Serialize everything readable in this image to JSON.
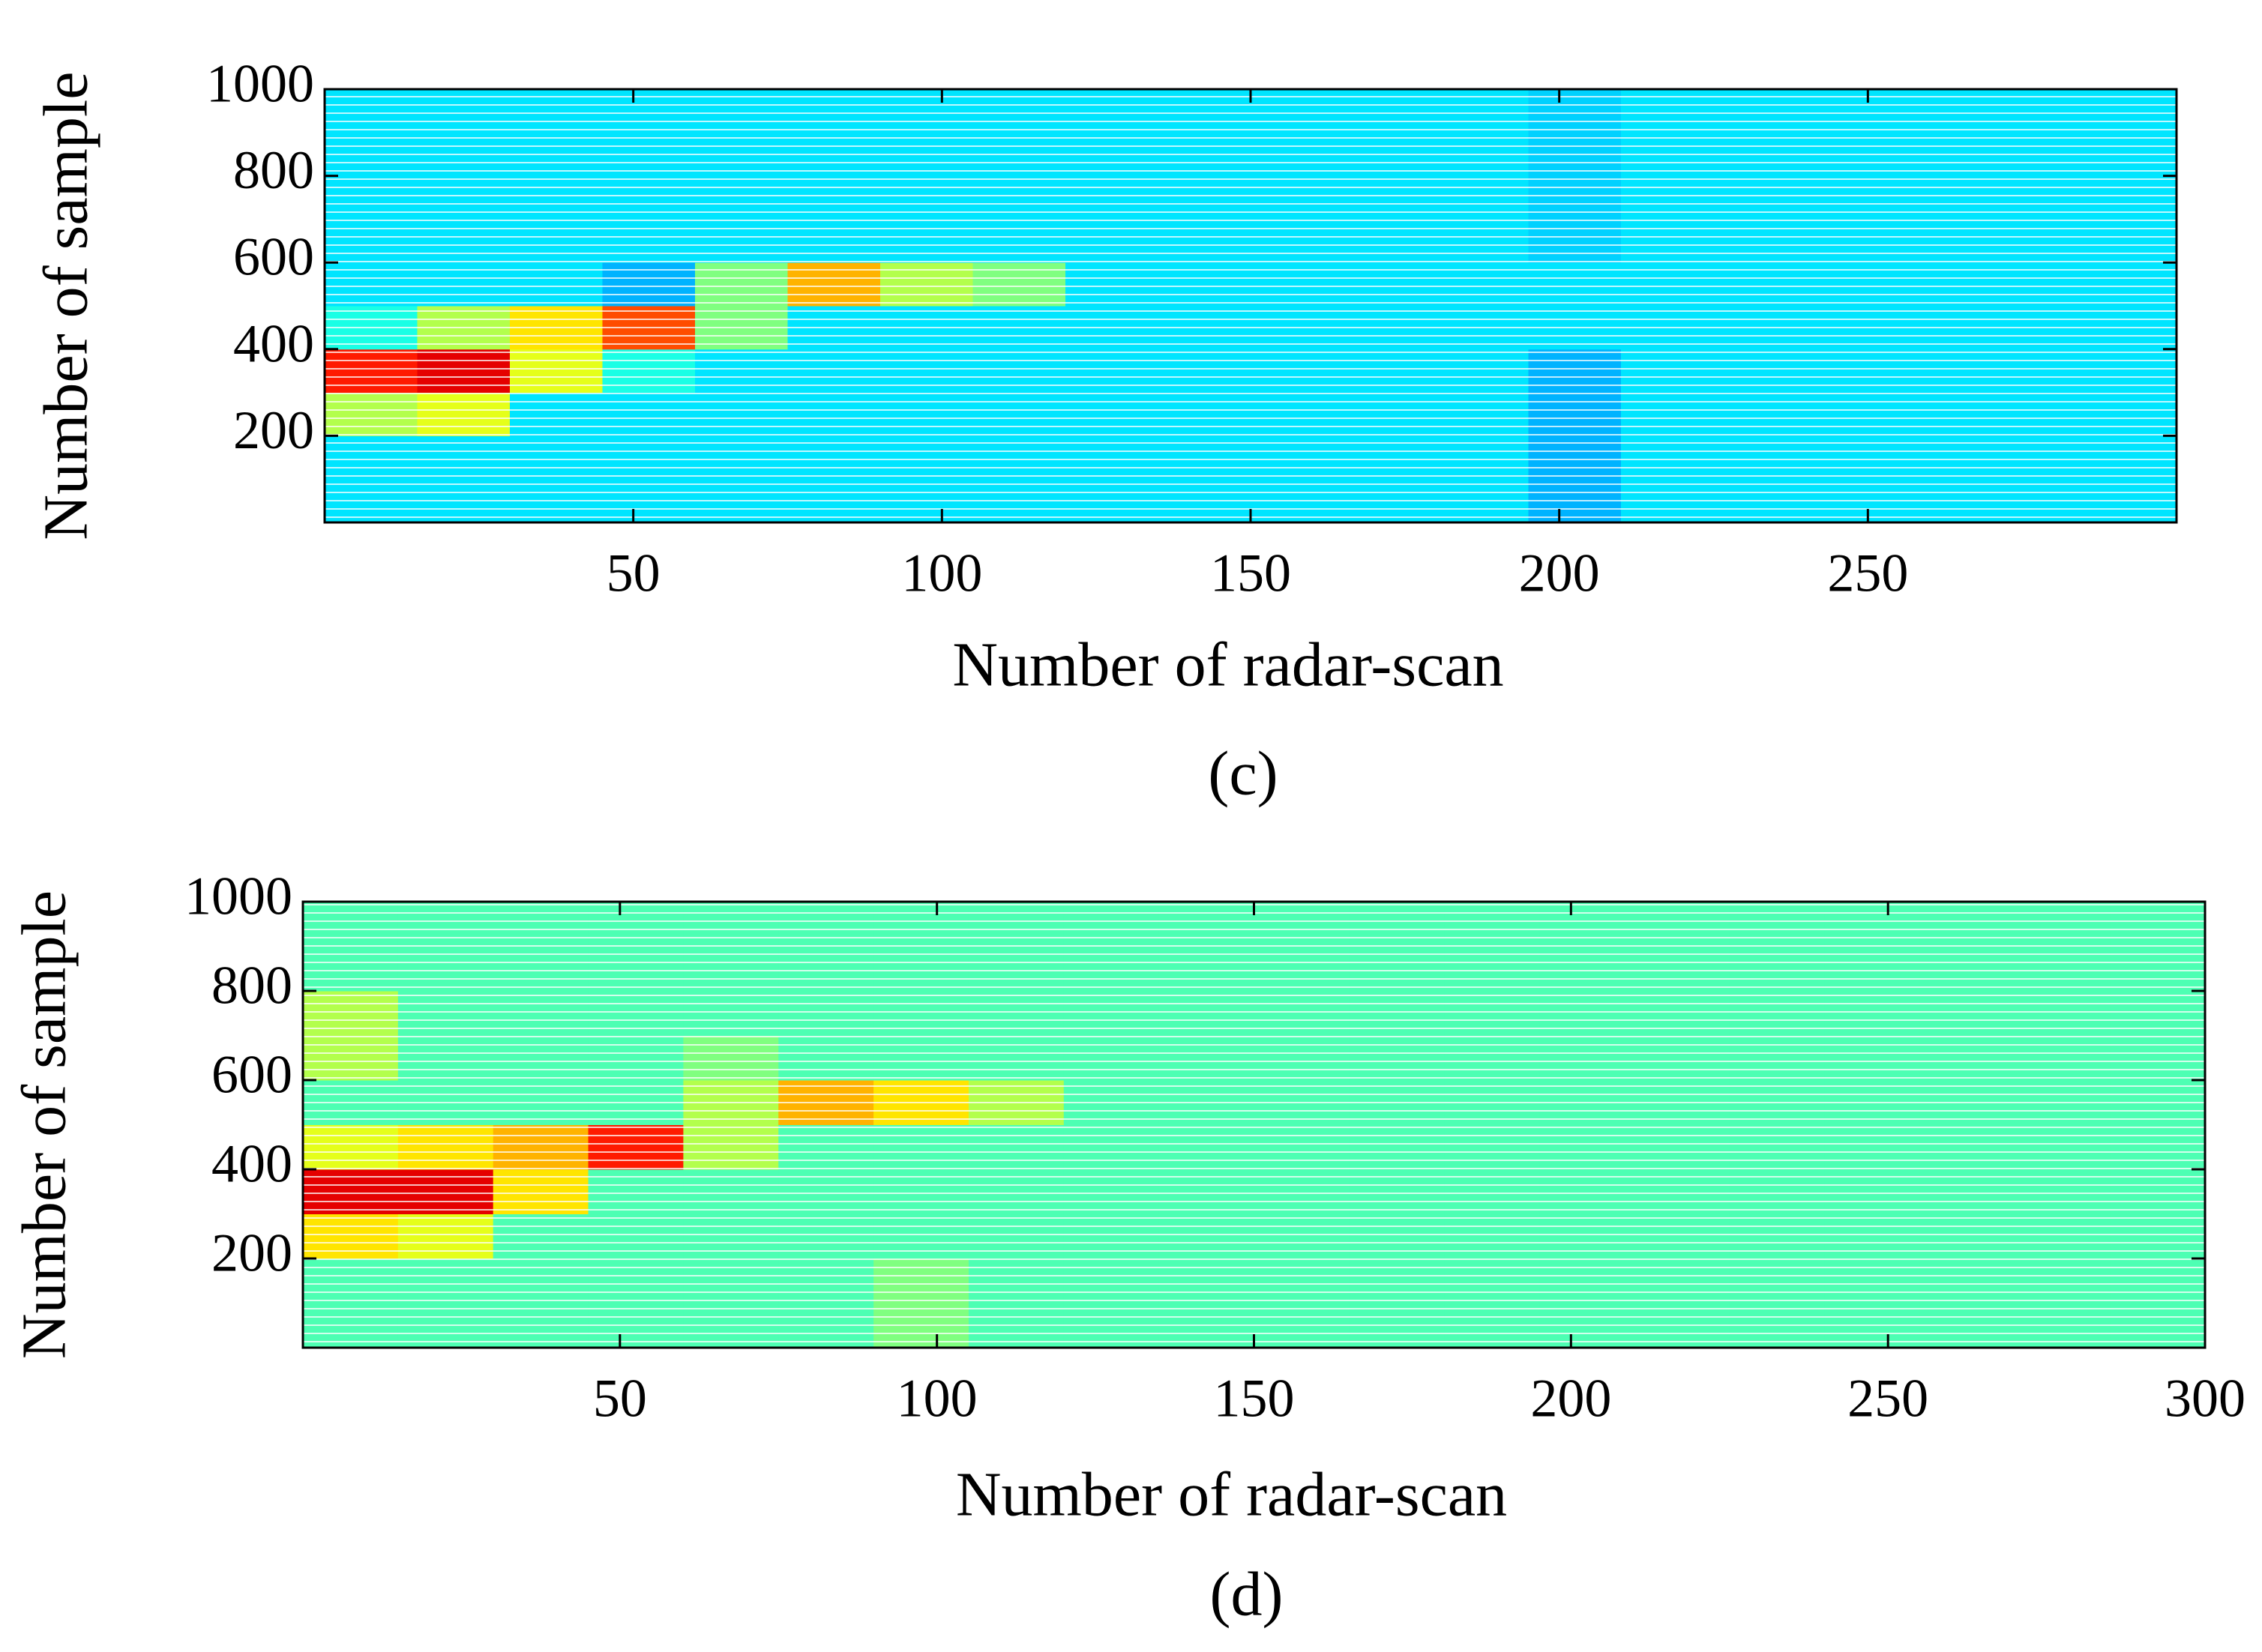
{
  "chart_data": [
    {
      "type": "heatmap",
      "label": "(c)",
      "xlabel": "Number of radar-scan",
      "ylabel": "Number of sample",
      "xlim": [
        0,
        300
      ],
      "ylim": [
        0,
        1000
      ],
      "xticks": [
        50,
        100,
        150,
        200,
        250
      ],
      "yticks": [
        200,
        400,
        600,
        800,
        1000
      ],
      "colormap": "jet",
      "zlim": [
        0,
        1
      ],
      "x_edges": [
        0,
        15,
        30,
        45,
        60,
        75,
        90,
        105,
        120,
        135,
        150,
        165,
        180,
        195,
        210,
        225,
        240,
        255,
        270,
        285,
        300
      ],
      "y_edges": [
        0,
        100,
        200,
        300,
        400,
        500,
        600,
        700,
        800,
        900,
        1000
      ],
      "z": [
        [
          0.35,
          0.35,
          0.35,
          0.35,
          0.35,
          0.35,
          0.35,
          0.35,
          0.35,
          0.35,
          0.35,
          0.35,
          0.35,
          0.3,
          0.35,
          0.35,
          0.35,
          0.35,
          0.35,
          0.35
        ],
        [
          0.35,
          0.35,
          0.35,
          0.35,
          0.35,
          0.35,
          0.35,
          0.35,
          0.35,
          0.35,
          0.35,
          0.35,
          0.35,
          0.3,
          0.35,
          0.35,
          0.35,
          0.35,
          0.35,
          0.35
        ],
        [
          0.55,
          0.6,
          0.35,
          0.35,
          0.35,
          0.35,
          0.35,
          0.35,
          0.35,
          0.35,
          0.35,
          0.35,
          0.35,
          0.3,
          0.35,
          0.35,
          0.35,
          0.35,
          0.35,
          0.35
        ],
        [
          0.85,
          0.9,
          0.6,
          0.4,
          0.35,
          0.35,
          0.35,
          0.35,
          0.35,
          0.35,
          0.35,
          0.35,
          0.35,
          0.3,
          0.35,
          0.35,
          0.35,
          0.35,
          0.35,
          0.35
        ],
        [
          0.4,
          0.55,
          0.65,
          0.8,
          0.5,
          0.35,
          0.35,
          0.35,
          0.35,
          0.35,
          0.35,
          0.35,
          0.35,
          0.35,
          0.35,
          0.35,
          0.35,
          0.35,
          0.35,
          0.35
        ],
        [
          0.35,
          0.35,
          0.35,
          0.3,
          0.5,
          0.7,
          0.55,
          0.5,
          0.35,
          0.35,
          0.35,
          0.35,
          0.35,
          0.35,
          0.35,
          0.35,
          0.35,
          0.35,
          0.35,
          0.35
        ],
        [
          0.35,
          0.35,
          0.35,
          0.35,
          0.35,
          0.35,
          0.35,
          0.35,
          0.35,
          0.35,
          0.35,
          0.35,
          0.35,
          0.33,
          0.35,
          0.35,
          0.35,
          0.35,
          0.35,
          0.35
        ],
        [
          0.35,
          0.35,
          0.35,
          0.35,
          0.35,
          0.35,
          0.35,
          0.35,
          0.35,
          0.35,
          0.35,
          0.35,
          0.35,
          0.33,
          0.35,
          0.35,
          0.35,
          0.35,
          0.35,
          0.35
        ],
        [
          0.35,
          0.35,
          0.35,
          0.35,
          0.35,
          0.35,
          0.35,
          0.35,
          0.35,
          0.35,
          0.35,
          0.35,
          0.35,
          0.33,
          0.35,
          0.35,
          0.35,
          0.35,
          0.35,
          0.35
        ],
        [
          0.35,
          0.35,
          0.35,
          0.35,
          0.35,
          0.35,
          0.35,
          0.35,
          0.35,
          0.35,
          0.35,
          0.35,
          0.35,
          0.33,
          0.35,
          0.35,
          0.35,
          0.35,
          0.35,
          0.35
        ]
      ]
    },
    {
      "type": "heatmap",
      "label": "(d)",
      "xlabel": "Number of radar-scan",
      "ylabel": "Number of sample",
      "xlim": [
        0,
        300
      ],
      "ylim": [
        0,
        1000
      ],
      "xticks": [
        50,
        100,
        150,
        200,
        250,
        300
      ],
      "yticks": [
        200,
        400,
        600,
        800,
        1000
      ],
      "colormap": "jet",
      "zlim": [
        0,
        1
      ],
      "x_edges": [
        0,
        15,
        30,
        45,
        60,
        75,
        90,
        105,
        120,
        135,
        150,
        165,
        180,
        195,
        210,
        225,
        240,
        255,
        270,
        285,
        300
      ],
      "y_edges": [
        0,
        100,
        200,
        300,
        400,
        500,
        600,
        700,
        800,
        900,
        1000
      ],
      "z": [
        [
          0.45,
          0.45,
          0.45,
          0.45,
          0.45,
          0.45,
          0.5,
          0.45,
          0.45,
          0.45,
          0.45,
          0.45,
          0.45,
          0.45,
          0.45,
          0.45,
          0.45,
          0.45,
          0.45,
          0.45
        ],
        [
          0.45,
          0.45,
          0.45,
          0.45,
          0.45,
          0.45,
          0.5,
          0.45,
          0.45,
          0.45,
          0.45,
          0.45,
          0.45,
          0.45,
          0.45,
          0.45,
          0.45,
          0.45,
          0.45,
          0.45
        ],
        [
          0.65,
          0.6,
          0.45,
          0.45,
          0.45,
          0.45,
          0.45,
          0.45,
          0.45,
          0.45,
          0.45,
          0.45,
          0.45,
          0.45,
          0.45,
          0.45,
          0.45,
          0.45,
          0.45,
          0.45
        ],
        [
          0.9,
          0.9,
          0.65,
          0.45,
          0.45,
          0.45,
          0.45,
          0.45,
          0.45,
          0.45,
          0.45,
          0.45,
          0.45,
          0.45,
          0.45,
          0.45,
          0.45,
          0.45,
          0.45,
          0.45
        ],
        [
          0.6,
          0.65,
          0.7,
          0.85,
          0.55,
          0.45,
          0.45,
          0.45,
          0.45,
          0.45,
          0.45,
          0.45,
          0.45,
          0.45,
          0.45,
          0.45,
          0.45,
          0.45,
          0.45,
          0.45
        ],
        [
          0.45,
          0.45,
          0.45,
          0.45,
          0.55,
          0.7,
          0.65,
          0.55,
          0.45,
          0.45,
          0.45,
          0.45,
          0.45,
          0.45,
          0.45,
          0.45,
          0.45,
          0.45,
          0.45,
          0.45
        ],
        [
          0.55,
          0.45,
          0.45,
          0.45,
          0.5,
          0.45,
          0.45,
          0.45,
          0.45,
          0.45,
          0.45,
          0.45,
          0.45,
          0.45,
          0.45,
          0.45,
          0.45,
          0.45,
          0.45,
          0.45
        ],
        [
          0.55,
          0.45,
          0.45,
          0.45,
          0.45,
          0.45,
          0.45,
          0.45,
          0.45,
          0.45,
          0.45,
          0.45,
          0.45,
          0.45,
          0.45,
          0.45,
          0.45,
          0.45,
          0.45,
          0.45
        ],
        [
          0.45,
          0.45,
          0.45,
          0.45,
          0.45,
          0.45,
          0.45,
          0.45,
          0.45,
          0.45,
          0.45,
          0.45,
          0.45,
          0.45,
          0.45,
          0.45,
          0.45,
          0.45,
          0.45,
          0.45
        ],
        [
          0.45,
          0.45,
          0.45,
          0.45,
          0.45,
          0.45,
          0.45,
          0.45,
          0.45,
          0.45,
          0.45,
          0.45,
          0.45,
          0.45,
          0.45,
          0.45,
          0.45,
          0.45,
          0.45,
          0.45
        ]
      ]
    }
  ]
}
